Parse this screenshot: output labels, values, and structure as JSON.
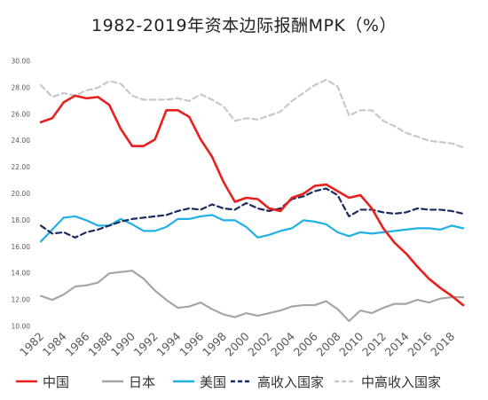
{
  "chart_data": {
    "type": "line",
    "title": "1982-2019年资本边际报酬MPK（%）",
    "xlabel": "",
    "ylabel": "",
    "x": [
      1982,
      1983,
      1984,
      1985,
      1986,
      1987,
      1988,
      1989,
      1990,
      1991,
      1992,
      1993,
      1994,
      1995,
      1996,
      1997,
      1998,
      1999,
      2000,
      2001,
      2002,
      2003,
      2004,
      2005,
      2006,
      2007,
      2008,
      2009,
      2010,
      2011,
      2012,
      2013,
      2014,
      2015,
      2016,
      2017,
      2018,
      2019
    ],
    "x_tick_labels": [
      "1982",
      "1984",
      "1986",
      "1988",
      "1990",
      "1992",
      "1994",
      "1996",
      "1998",
      "2000",
      "2002",
      "2004",
      "2006",
      "2008",
      "2010",
      "2012",
      "2014",
      "2016",
      "2018"
    ],
    "y_tick_labels": [
      "10.00",
      "12.00",
      "14.00",
      "16.00",
      "18.00",
      "20.00",
      "22.00",
      "24.00",
      "26.00",
      "28.00",
      "30.00"
    ],
    "ylim": [
      10,
      30
    ],
    "xlim": [
      1982,
      2019
    ],
    "grid": false,
    "legend_position": "bottom",
    "series": [
      {
        "name": "中国",
        "color": "#e8201d",
        "dash": "solid",
        "values": [
          25.4,
          25.7,
          26.9,
          27.4,
          27.2,
          27.3,
          26.7,
          24.9,
          23.6,
          23.6,
          24.1,
          26.3,
          26.3,
          25.8,
          24.1,
          22.8,
          20.9,
          19.4,
          19.7,
          19.6,
          18.9,
          18.7,
          19.7,
          20.0,
          20.6,
          20.7,
          20.2,
          19.7,
          19.9,
          18.9,
          17.4,
          16.3,
          15.5,
          14.5,
          13.6,
          12.9,
          12.3,
          11.6
        ]
      },
      {
        "name": "日本",
        "color": "#a6a6a6",
        "dash": "solid",
        "values": [
          12.3,
          12.0,
          12.4,
          13.0,
          13.1,
          13.3,
          14.0,
          14.1,
          14.2,
          13.6,
          12.7,
          12.0,
          11.4,
          11.5,
          11.8,
          11.3,
          10.9,
          10.7,
          11.0,
          10.8,
          11.0,
          11.2,
          11.5,
          11.6,
          11.6,
          11.9,
          11.3,
          10.4,
          11.2,
          11.0,
          11.4,
          11.7,
          11.7,
          12.0,
          11.8,
          12.1,
          12.2,
          12.2
        ]
      },
      {
        "name": "美国",
        "color": "#1fb0e6",
        "dash": "solid",
        "values": [
          16.4,
          17.3,
          18.2,
          18.3,
          18.0,
          17.6,
          17.6,
          18.1,
          17.7,
          17.2,
          17.2,
          17.5,
          18.1,
          18.1,
          18.3,
          18.4,
          18.0,
          18.0,
          17.5,
          16.7,
          16.9,
          17.2,
          17.4,
          18.0,
          17.9,
          17.7,
          17.1,
          16.8,
          17.1,
          17.0,
          17.1,
          17.2,
          17.3,
          17.4,
          17.4,
          17.3,
          17.6,
          17.4
        ]
      },
      {
        "name": "高收入国家",
        "color": "#1a2b5e",
        "dash": "dashed",
        "values": [
          17.6,
          17.0,
          17.1,
          16.7,
          17.1,
          17.3,
          17.6,
          17.9,
          18.1,
          18.2,
          18.3,
          18.4,
          18.7,
          18.9,
          18.8,
          19.2,
          18.9,
          18.8,
          19.3,
          18.9,
          18.7,
          18.9,
          19.6,
          19.8,
          20.2,
          20.4,
          19.9,
          18.3,
          18.8,
          18.8,
          18.6,
          18.5,
          18.6,
          18.9,
          18.8,
          18.8,
          18.7,
          18.5
        ]
      },
      {
        "name": "中高收入国家",
        "color": "#c8c8c8",
        "dash": "dashed",
        "values": [
          28.2,
          27.3,
          27.6,
          27.4,
          27.8,
          28.0,
          28.5,
          28.3,
          27.4,
          27.1,
          27.1,
          27.1,
          27.2,
          27.0,
          27.5,
          27.1,
          26.6,
          25.5,
          25.7,
          25.6,
          25.9,
          26.2,
          27.0,
          27.6,
          28.2,
          28.6,
          28.1,
          25.9,
          26.3,
          26.3,
          25.5,
          25.1,
          24.6,
          24.3,
          24.0,
          23.9,
          23.8,
          23.5
        ]
      }
    ]
  }
}
